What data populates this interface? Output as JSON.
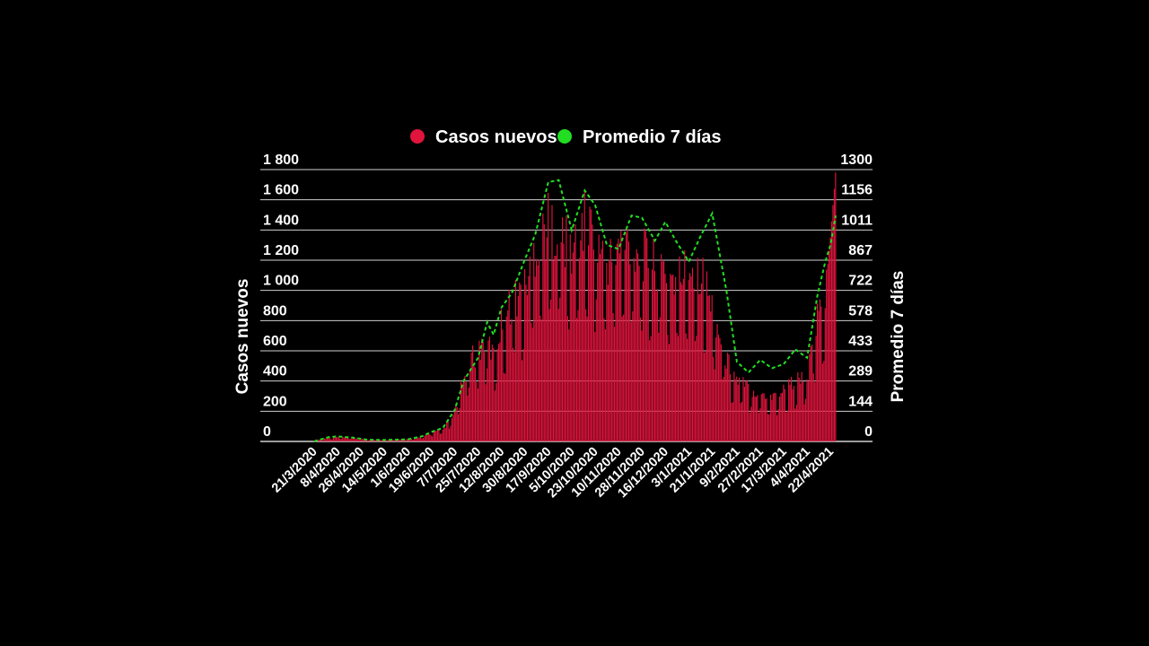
{
  "chart_data": {
    "type": "bar",
    "legend": {
      "placement": "top-center",
      "items": [
        {
          "label": "Casos nuevos",
          "color": "#e0143c"
        },
        {
          "label": "Promedio 7 días",
          "color": "#22dd22"
        }
      ]
    },
    "ylabel_left": "Casos nuevos",
    "ylabel_right": "Promedio 7 días",
    "ylim_left": [
      0,
      1800
    ],
    "ylim_right": [
      0,
      1300
    ],
    "yticks_left": [
      "0",
      "200",
      "400",
      "600",
      "800",
      "1 000",
      "1 200",
      "1 400",
      "1 600",
      "1 800"
    ],
    "yticks_right": [
      "0",
      "144",
      "289",
      "433",
      "578",
      "722",
      "867",
      "1011",
      "1156",
      "1300"
    ],
    "grid": true,
    "x_date_labels": [
      "21/3/2020",
      "8/4/2020",
      "26/4/2020",
      "14/5/2020",
      "1/6/2020",
      "19/6/2020",
      "7/7/2020",
      "25/7/2020",
      "12/8/2020",
      "30/8/2020",
      "17/9/2020",
      "5/10/2020",
      "23/10/2020",
      "10/11/2020",
      "28/11/2020",
      "16/12/2020",
      "3/1/2021",
      "21/1/2021",
      "9/2/2021",
      "27/2/2021",
      "17/3/2021",
      "4/4/2021",
      "22/4/2021"
    ],
    "series": [
      {
        "name": "Casos nuevos",
        "axis": "left",
        "kind": "bar",
        "color": "#e0143c",
        "start_date": "2020-03-21",
        "end_date": "2021-04-26",
        "points": [
          [
            "2020-03-21",
            5
          ],
          [
            "2020-04-01",
            25
          ],
          [
            "2020-04-08",
            30
          ],
          [
            "2020-04-20",
            25
          ],
          [
            "2020-05-01",
            12
          ],
          [
            "2020-05-14",
            10
          ],
          [
            "2020-06-01",
            15
          ],
          [
            "2020-06-12",
            30
          ],
          [
            "2020-06-19",
            60
          ],
          [
            "2020-06-28",
            80
          ],
          [
            "2020-07-07",
            190
          ],
          [
            "2020-07-14",
            420
          ],
          [
            "2020-07-20",
            560
          ],
          [
            "2020-07-25",
            620
          ],
          [
            "2020-08-01",
            700
          ],
          [
            "2020-08-06",
            580
          ],
          [
            "2020-08-12",
            800
          ],
          [
            "2020-08-20",
            960
          ],
          [
            "2020-08-30",
            1040
          ],
          [
            "2020-09-07",
            1320
          ],
          [
            "2020-09-17",
            1480
          ],
          [
            "2020-09-25",
            1440
          ],
          [
            "2020-10-05",
            1280
          ],
          [
            "2020-10-15",
            1500
          ],
          [
            "2020-10-23",
            1420
          ],
          [
            "2020-11-01",
            1220
          ],
          [
            "2020-11-10",
            1320
          ],
          [
            "2020-11-20",
            1380
          ],
          [
            "2020-11-28",
            1280
          ],
          [
            "2020-12-08",
            1200
          ],
          [
            "2020-12-16",
            1180
          ],
          [
            "2020-12-24",
            1100
          ],
          [
            "2021-01-03",
            1200
          ],
          [
            "2021-01-12",
            1180
          ],
          [
            "2021-01-21",
            920
          ],
          [
            "2021-02-01",
            560
          ],
          [
            "2021-02-09",
            420
          ],
          [
            "2021-02-18",
            370
          ],
          [
            "2021-02-27",
            330
          ],
          [
            "2021-03-08",
            310
          ],
          [
            "2021-03-17",
            350
          ],
          [
            "2021-03-26",
            420
          ],
          [
            "2021-04-04",
            420
          ],
          [
            "2021-04-12",
            820
          ],
          [
            "2021-04-18",
            1000
          ],
          [
            "2021-04-22",
            1350
          ],
          [
            "2021-04-26",
            1780
          ]
        ]
      },
      {
        "name": "Promedio 7 días",
        "axis": "right",
        "kind": "line",
        "style": "dashed",
        "color": "#22dd22",
        "points": [
          [
            "2020-03-21",
            1
          ],
          [
            "2020-04-01",
            20
          ],
          [
            "2020-04-08",
            24
          ],
          [
            "2020-04-20",
            18
          ],
          [
            "2020-05-01",
            8
          ],
          [
            "2020-05-14",
            7
          ],
          [
            "2020-06-01",
            10
          ],
          [
            "2020-06-12",
            25
          ],
          [
            "2020-06-19",
            45
          ],
          [
            "2020-06-28",
            65
          ],
          [
            "2020-07-07",
            150
          ],
          [
            "2020-07-14",
            290
          ],
          [
            "2020-07-20",
            350
          ],
          [
            "2020-07-25",
            400
          ],
          [
            "2020-08-01",
            570
          ],
          [
            "2020-08-06",
            510
          ],
          [
            "2020-08-12",
            640
          ],
          [
            "2020-08-20",
            710
          ],
          [
            "2020-08-30",
            870
          ],
          [
            "2020-09-07",
            990
          ],
          [
            "2020-09-17",
            1240
          ],
          [
            "2020-09-25",
            1250
          ],
          [
            "2020-10-05",
            1010
          ],
          [
            "2020-10-15",
            1200
          ],
          [
            "2020-10-23",
            1130
          ],
          [
            "2020-11-01",
            940
          ],
          [
            "2020-11-10",
            920
          ],
          [
            "2020-11-20",
            1080
          ],
          [
            "2020-11-28",
            1070
          ],
          [
            "2020-12-08",
            960
          ],
          [
            "2020-12-16",
            1050
          ],
          [
            "2020-12-24",
            960
          ],
          [
            "2021-01-03",
            860
          ],
          [
            "2021-01-12",
            980
          ],
          [
            "2021-01-21",
            1090
          ],
          [
            "2021-02-01",
            720
          ],
          [
            "2021-02-09",
            380
          ],
          [
            "2021-02-18",
            330
          ],
          [
            "2021-02-27",
            390
          ],
          [
            "2021-03-08",
            350
          ],
          [
            "2021-03-17",
            370
          ],
          [
            "2021-03-26",
            440
          ],
          [
            "2021-04-04",
            400
          ],
          [
            "2021-04-12",
            700
          ],
          [
            "2021-04-18",
            860
          ],
          [
            "2021-04-22",
            940
          ],
          [
            "2021-04-26",
            1080
          ]
        ]
      }
    ]
  }
}
